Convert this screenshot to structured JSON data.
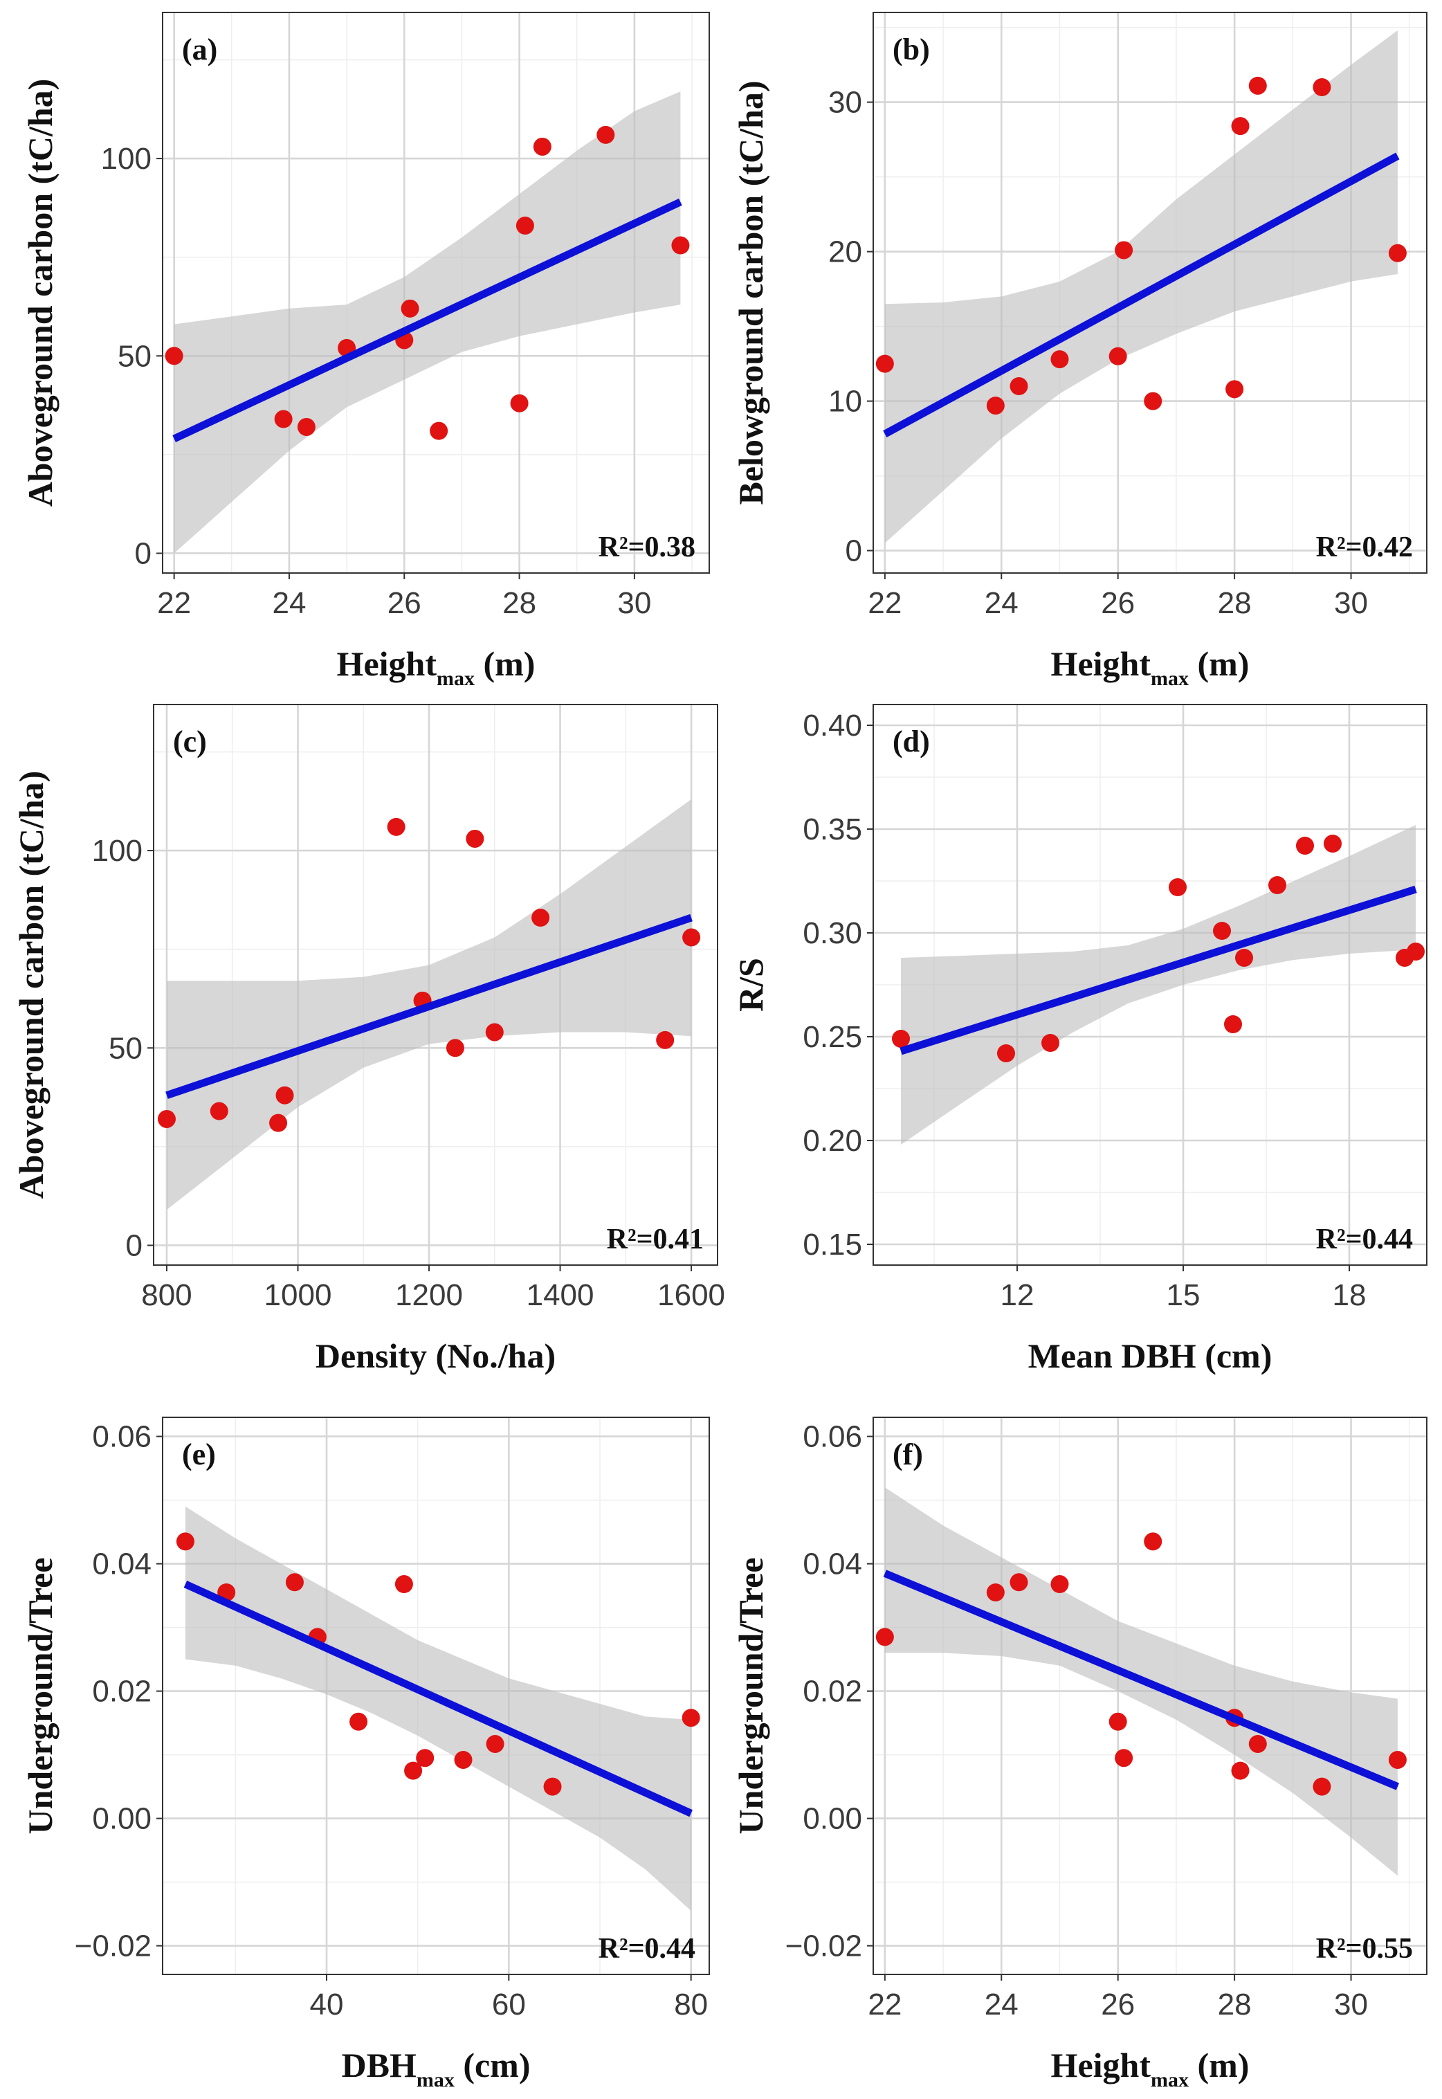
{
  "chart_data": [
    {
      "type": "scatter",
      "panel_label": "(a)",
      "xlabel": "Height",
      "xlabel_sub": "max",
      "xlabel_suffix": " (m)",
      "ylabel": "Aboveground carbon (tC/ha)",
      "xlim": [
        21.8,
        31.3
      ],
      "ylim": [
        -5,
        137
      ],
      "xticks": [
        22,
        24,
        26,
        28,
        30
      ],
      "yticks": [
        0,
        50,
        100
      ],
      "points": [
        [
          22.0,
          50
        ],
        [
          23.9,
          34
        ],
        [
          24.3,
          32
        ],
        [
          25.0,
          52
        ],
        [
          26.0,
          54
        ],
        [
          26.1,
          62
        ],
        [
          26.6,
          31
        ],
        [
          28.0,
          38
        ],
        [
          28.1,
          83
        ],
        [
          28.4,
          103
        ],
        [
          29.5,
          106
        ],
        [
          30.8,
          78
        ]
      ],
      "fit": {
        "x": [
          22.0,
          30.8
        ],
        "y": [
          29,
          89
        ]
      },
      "band_x": [
        22.0,
        23.0,
        24.0,
        25.0,
        26.0,
        27.0,
        28.0,
        29.0,
        30.0,
        30.8
      ],
      "band_lower": [
        0,
        13,
        26,
        37,
        44,
        51,
        55,
        58,
        61,
        63
      ],
      "band_upper": [
        58,
        60,
        62,
        63,
        70,
        80,
        91,
        102,
        112,
        117
      ],
      "r2": "R²=0.38"
    },
    {
      "type": "scatter",
      "panel_label": "(b)",
      "xlabel": "Height",
      "xlabel_sub": "max",
      "xlabel_suffix": " (m)",
      "ylabel": "Belowground carbon (tC/ha)",
      "xlim": [
        21.8,
        31.3
      ],
      "ylim": [
        -1.5,
        36
      ],
      "xticks": [
        22,
        24,
        26,
        28,
        30
      ],
      "yticks": [
        0,
        10,
        20,
        30
      ],
      "points": [
        [
          22.0,
          12.5
        ],
        [
          23.9,
          9.7
        ],
        [
          24.3,
          11.0
        ],
        [
          25.0,
          12.8
        ],
        [
          26.0,
          13.0
        ],
        [
          26.1,
          20.1
        ],
        [
          26.6,
          10.0
        ],
        [
          28.0,
          10.8
        ],
        [
          28.1,
          28.4
        ],
        [
          28.4,
          31.1
        ],
        [
          29.5,
          31.0
        ],
        [
          30.8,
          19.9
        ]
      ],
      "fit": {
        "x": [
          22.0,
          30.8
        ],
        "y": [
          7.8,
          26.4
        ]
      },
      "band_x": [
        22.0,
        23.0,
        24.0,
        25.0,
        26.0,
        27.0,
        28.0,
        29.0,
        30.0,
        30.8
      ],
      "band_lower": [
        0.5,
        4.0,
        7.5,
        10.5,
        12.8,
        14.5,
        16.0,
        17.0,
        18.0,
        18.5
      ],
      "band_upper": [
        16.5,
        16.6,
        17.0,
        18.0,
        20.0,
        23.5,
        26.5,
        29.5,
        32.5,
        34.8
      ],
      "r2": "R²=0.42"
    },
    {
      "type": "scatter",
      "panel_label": "(c)",
      "xlabel": "Density (No./ha)",
      "xlabel_sub": "",
      "xlabel_suffix": "",
      "ylabel": "Aboveground carbon (tC/ha)",
      "xlim": [
        780,
        1640
      ],
      "ylim": [
        -5,
        137
      ],
      "xticks": [
        800,
        1000,
        1200,
        1400,
        1600
      ],
      "yticks": [
        0,
        50,
        100
      ],
      "points": [
        [
          800,
          32
        ],
        [
          880,
          34
        ],
        [
          970,
          31
        ],
        [
          980,
          38
        ],
        [
          1150,
          106
        ],
        [
          1190,
          62
        ],
        [
          1240,
          50
        ],
        [
          1270,
          103
        ],
        [
          1300,
          54
        ],
        [
          1370,
          83
        ],
        [
          1560,
          52
        ],
        [
          1600,
          78
        ]
      ],
      "fit": {
        "x": [
          800,
          1600
        ],
        "y": [
          38,
          83
        ]
      },
      "band_x": [
        800,
        900,
        1000,
        1100,
        1200,
        1300,
        1400,
        1500,
        1600
      ],
      "band_lower": [
        9,
        22,
        35,
        45,
        51,
        53,
        54,
        54,
        53
      ],
      "band_upper": [
        67,
        67,
        67,
        68,
        71,
        78,
        89,
        101,
        113
      ],
      "r2": "R²=0.41"
    },
    {
      "type": "scatter",
      "panel_label": "(d)",
      "xlabel": "Mean DBH (cm)",
      "xlabel_sub": "",
      "xlabel_suffix": "",
      "ylabel": "R/S",
      "xlim": [
        9.4,
        19.4
      ],
      "ylim": [
        0.14,
        0.41
      ],
      "xticks": [
        12,
        15,
        18
      ],
      "yticks": [
        0.15,
        0.2,
        0.25,
        0.3,
        0.35,
        0.4
      ],
      "ytick_labels": [
        "0.15",
        "0.20",
        "0.25",
        "0.30",
        "0.35",
        "0.40"
      ],
      "points": [
        [
          9.9,
          0.249
        ],
        [
          11.8,
          0.242
        ],
        [
          12.6,
          0.247
        ],
        [
          14.9,
          0.322
        ],
        [
          15.7,
          0.301
        ],
        [
          15.9,
          0.256
        ],
        [
          16.1,
          0.288
        ],
        [
          16.7,
          0.323
        ],
        [
          17.2,
          0.342
        ],
        [
          17.7,
          0.343
        ],
        [
          19.0,
          0.288
        ],
        [
          19.2,
          0.291
        ]
      ],
      "fit": {
        "x": [
          9.9,
          19.2
        ],
        "y": [
          0.243,
          0.321
        ]
      },
      "band_x": [
        9.9,
        11.0,
        12.0,
        13.0,
        14.0,
        15.0,
        16.0,
        17.0,
        18.0,
        19.2
      ],
      "band_lower": [
        0.198,
        0.218,
        0.236,
        0.252,
        0.266,
        0.275,
        0.282,
        0.287,
        0.29,
        0.292
      ],
      "band_upper": [
        0.288,
        0.289,
        0.29,
        0.291,
        0.294,
        0.302,
        0.313,
        0.325,
        0.337,
        0.352
      ],
      "r2": "R²=0.44"
    },
    {
      "type": "scatter",
      "panel_label": "(e)",
      "xlabel": "DBH",
      "xlabel_sub": "max",
      "xlabel_suffix": " (cm)",
      "ylabel": "Underground/Tree",
      "xlim": [
        22,
        82
      ],
      "ylim": [
        -0.0245,
        0.063
      ],
      "xticks": [
        40,
        60,
        80
      ],
      "yticks": [
        -0.02,
        0.0,
        0.02,
        0.04,
        0.06
      ],
      "ytick_labels": [
        "−0.02",
        "0.00",
        "0.02",
        "0.04",
        "0.06"
      ],
      "points": [
        [
          24.5,
          0.0435
        ],
        [
          29.0,
          0.0355
        ],
        [
          36.5,
          0.0371
        ],
        [
          39.0,
          0.0285
        ],
        [
          43.5,
          0.0152
        ],
        [
          48.5,
          0.0368
        ],
        [
          49.5,
          0.0075
        ],
        [
          50.8,
          0.0095
        ],
        [
          55.0,
          0.0092
        ],
        [
          58.5,
          0.0117
        ],
        [
          64.8,
          0.005
        ],
        [
          80.0,
          0.0158
        ]
      ],
      "fit": {
        "x": [
          24.5,
          80.0
        ],
        "y": [
          0.0368,
          0.0008
        ]
      },
      "band_x": [
        24.5,
        30,
        35,
        40,
        45,
        50,
        55,
        60,
        65,
        70,
        75,
        80
      ],
      "band_lower": [
        0.025,
        0.024,
        0.022,
        0.0195,
        0.0165,
        0.013,
        0.009,
        0.005,
        0.001,
        -0.003,
        -0.008,
        -0.0145
      ],
      "band_upper": [
        0.049,
        0.044,
        0.04,
        0.036,
        0.032,
        0.028,
        0.025,
        0.022,
        0.02,
        0.018,
        0.016,
        0.0155
      ],
      "r2": "R²=0.44"
    },
    {
      "type": "scatter",
      "panel_label": "(f)",
      "xlabel": "Height",
      "xlabel_sub": "max",
      "xlabel_suffix": " (m)",
      "ylabel": "Underground/Tree",
      "xlim": [
        21.8,
        31.3
      ],
      "ylim": [
        -0.0245,
        0.063
      ],
      "xticks": [
        22,
        24,
        26,
        28,
        30
      ],
      "yticks": [
        -0.02,
        0.0,
        0.02,
        0.04,
        0.06
      ],
      "ytick_labels": [
        "−0.02",
        "0.00",
        "0.02",
        "0.04",
        "0.06"
      ],
      "points": [
        [
          22.0,
          0.0285
        ],
        [
          23.9,
          0.0355
        ],
        [
          24.3,
          0.0371
        ],
        [
          25.0,
          0.0368
        ],
        [
          26.0,
          0.0152
        ],
        [
          26.1,
          0.0095
        ],
        [
          26.6,
          0.0435
        ],
        [
          28.0,
          0.0158
        ],
        [
          28.1,
          0.0075
        ],
        [
          28.4,
          0.0117
        ],
        [
          29.5,
          0.005
        ],
        [
          30.8,
          0.0092
        ]
      ],
      "fit": {
        "x": [
          22.0,
          30.8
        ],
        "y": [
          0.0385,
          0.005
        ]
      },
      "band_x": [
        22.0,
        23.0,
        24.0,
        25.0,
        26.0,
        27.0,
        28.0,
        29.0,
        30.0,
        30.8
      ],
      "band_lower": [
        0.026,
        0.026,
        0.0255,
        0.024,
        0.02,
        0.0155,
        0.01,
        0.004,
        -0.003,
        -0.009
      ],
      "band_upper": [
        0.052,
        0.046,
        0.041,
        0.036,
        0.031,
        0.0275,
        0.024,
        0.0215,
        0.0198,
        0.0188
      ],
      "r2": "R²=0.55"
    }
  ]
}
